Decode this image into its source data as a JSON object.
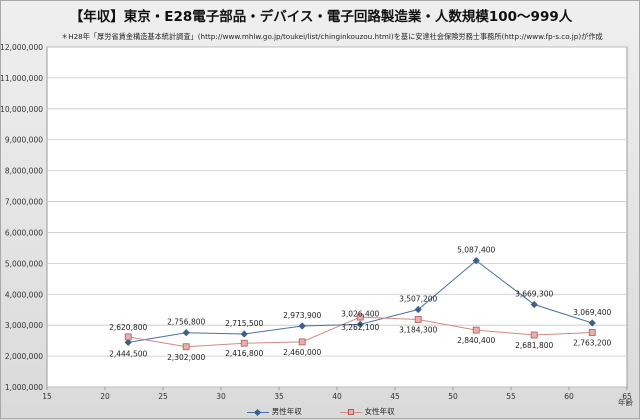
{
  "title": "【年収】東京・E28電子部品・デバイス・電子回路製造業・人数規模100～999人",
  "subtitle": "＊H28年「厚労省賃金構造基本統計調査」(http://www.mhlw.go.jp/toukei/list/chinginkouzou.html)を基に安達社会保険労務士事務所(http://www.fp-s.co.jp)が作成",
  "colors": {
    "male": "#3e5f8a",
    "male_line": "#4a6fa5",
    "female": "#d08a86",
    "female_fill": "#e8b0ac"
  },
  "chart_data": {
    "type": "line",
    "xlabel": "年齢",
    "ylabel": "",
    "xlim": [
      15,
      65
    ],
    "ylim": [
      1000000,
      12000000
    ],
    "x_ticks": [
      15,
      20,
      25,
      30,
      35,
      40,
      45,
      50,
      55,
      60,
      65
    ],
    "y_ticks": [
      1000000,
      2000000,
      3000000,
      4000000,
      5000000,
      6000000,
      7000000,
      8000000,
      9000000,
      10000000,
      11000000,
      12000000
    ],
    "x_tick_labels": [
      "15",
      "20",
      "25",
      "30",
      "35",
      "40",
      "45",
      "50",
      "55",
      "60",
      "65"
    ],
    "y_tick_labels": [
      "1,000,000",
      "2,000,000",
      "3,000,000",
      "4,000,000",
      "5,000,000",
      "6,000,000",
      "7,000,000",
      "8,000,000",
      "9,000,000",
      "10,000,000",
      "11,000,000",
      "12,000,000"
    ],
    "grid": true,
    "legend_position": "bottom",
    "x": [
      22,
      27,
      32,
      37,
      42,
      47,
      52,
      57,
      62
    ],
    "series": [
      {
        "name": "男性年収",
        "key": "male",
        "values": [
          2444500,
          2756800,
          2715500,
          2973900,
          3026400,
          3507200,
          5087400,
          3669300,
          3069400
        ],
        "labels": [
          "2,444,500",
          "2,756,800",
          "2,715,500",
          "2,973,900",
          "3,026,400",
          "3,507,200",
          "5,087,400",
          "3,669,300",
          "3,069,400"
        ]
      },
      {
        "name": "女性年収",
        "key": "female",
        "values": [
          2620800,
          2302000,
          2416800,
          2460000,
          3262100,
          3184300,
          2840400,
          2681800,
          2763200
        ],
        "labels": [
          "2,620,800",
          "2,302,000",
          "2,416,800",
          "2,460,000",
          "3,262,100",
          "3,184,300",
          "2,840,400",
          "2,681,800",
          "2,763,200"
        ]
      }
    ]
  }
}
